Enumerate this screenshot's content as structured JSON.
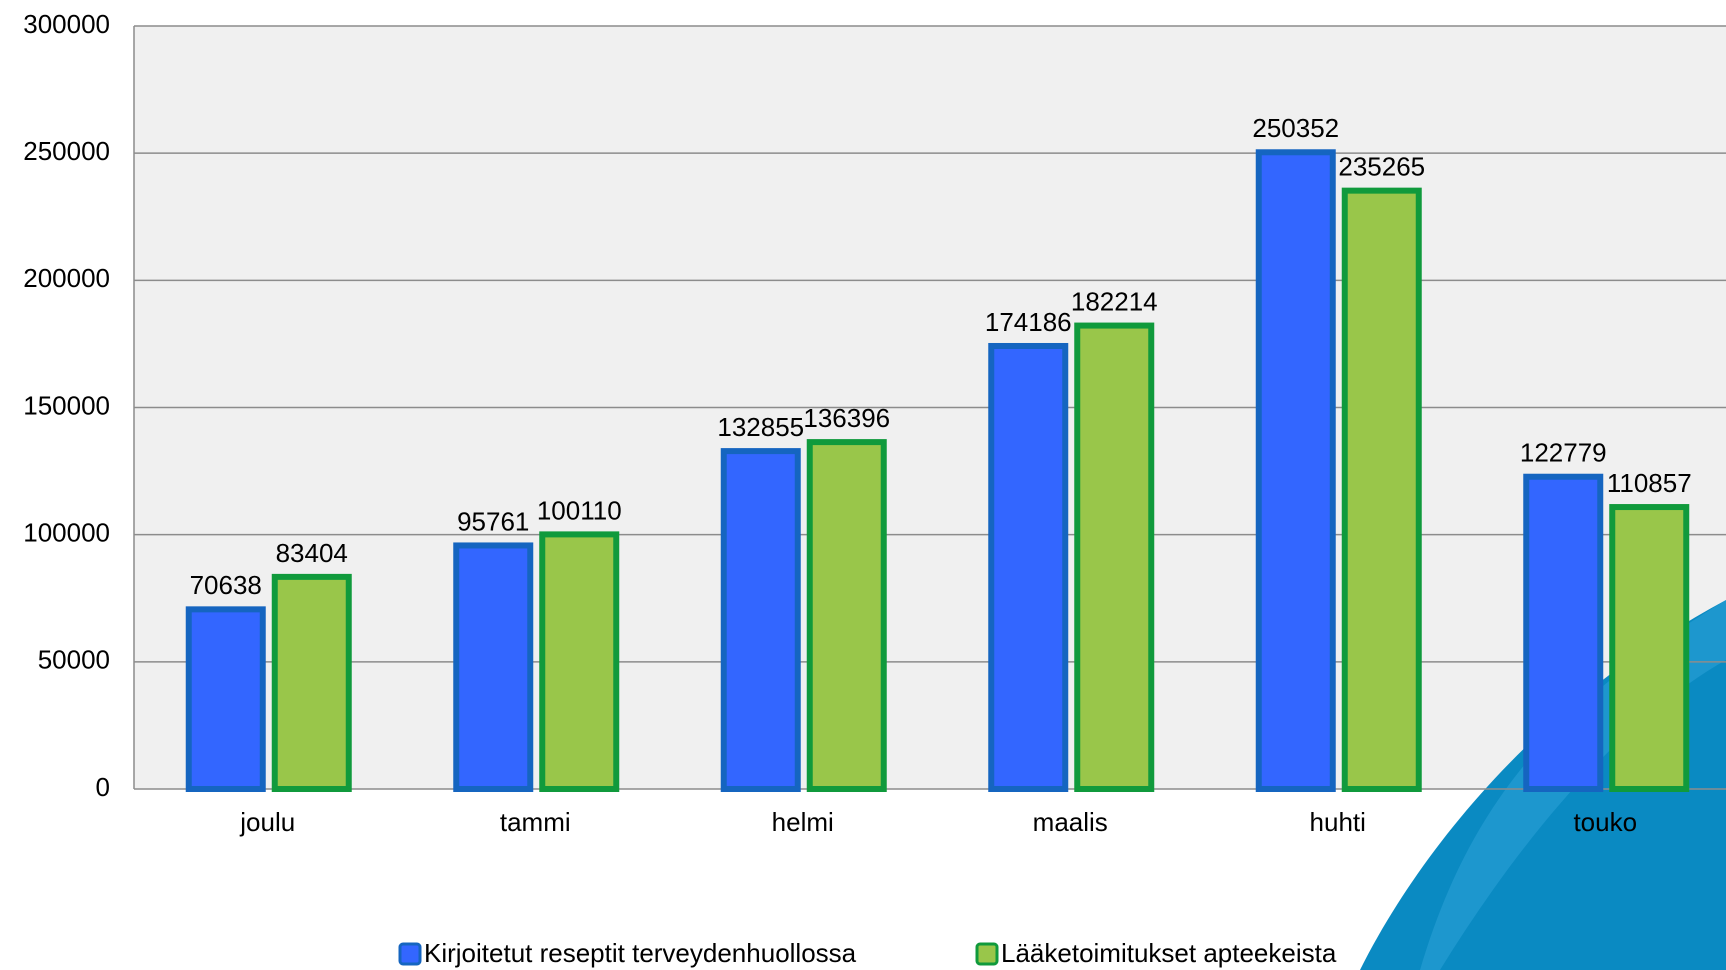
{
  "chart_data": {
    "type": "bar",
    "categories": [
      "joulu",
      "tammi",
      "helmi",
      "maalis",
      "huhti",
      "touko"
    ],
    "series": [
      {
        "name": "Kirjoitetut reseptit terveydenhuollossa",
        "color": "#3366ff",
        "edge_color": "#1565c0",
        "values": [
          70638,
          95761,
          132855,
          174186,
          250352,
          122779
        ]
      },
      {
        "name": "Lääketoimitukset apteekeista",
        "color": "#99c64a",
        "edge_color": "#109a3c",
        "values": [
          83404,
          100110,
          136396,
          182214,
          235265,
          110857
        ]
      }
    ],
    "ylim": [
      0,
      300000
    ],
    "yticks": [
      0,
      50000,
      100000,
      150000,
      200000,
      250000,
      300000
    ],
    "grid": true,
    "legend": "bottom"
  }
}
